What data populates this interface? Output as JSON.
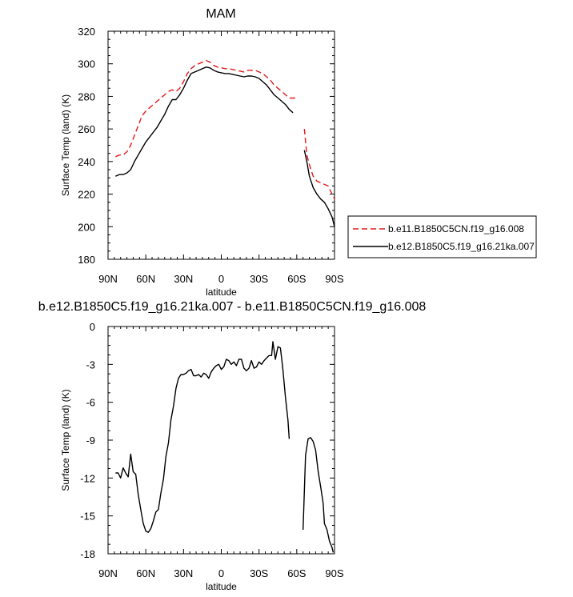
{
  "chart_data": [
    {
      "type": "line",
      "title": "MAM",
      "xlabel": "latitude",
      "ylabel": "Surface Temp (land) (K)",
      "xlim": [
        90,
        -90
      ],
      "ylim": [
        180,
        320
      ],
      "xticks": [
        90,
        60,
        30,
        0,
        -30,
        -60,
        -90
      ],
      "xticklabels": [
        "90N",
        "60N",
        "30N",
        "0",
        "30S",
        "60S",
        "90S"
      ],
      "yticks": [
        180,
        200,
        220,
        240,
        260,
        280,
        300,
        320
      ],
      "yticklabels": [
        "180",
        "200",
        "220",
        "240",
        "260",
        "280",
        "300",
        "320"
      ],
      "grid": false,
      "legend_position": "outside right",
      "series": [
        {
          "name": "b.e11.B1850C5CN.f19_g16.008",
          "color": "#e41a1c",
          "dash": "dashed",
          "segments": [
            [
              [
                84,
                243
              ],
              [
                81,
                244
              ],
              [
                78,
                244
              ],
              [
                75,
                246
              ],
              [
                72,
                250
              ],
              [
                69,
                256
              ],
              [
                66,
                262
              ],
              [
                63,
                268
              ],
              [
                60,
                271
              ],
              [
                57,
                273
              ],
              [
                54,
                275
              ],
              [
                51,
                277
              ],
              [
                48,
                279
              ],
              [
                45,
                281
              ],
              [
                42,
                283
              ],
              [
                39,
                284
              ],
              [
                36,
                283
              ],
              [
                33,
                285
              ],
              [
                30,
                289
              ],
              [
                27,
                294
              ],
              [
                24,
                297
              ],
              [
                21,
                299
              ],
              [
                18,
                300
              ],
              [
                15,
                301
              ],
              [
                12,
                302
              ],
              [
                9,
                301
              ],
              [
                6,
                299
              ],
              [
                3,
                298
              ],
              [
                0,
                297.5
              ],
              [
                -3,
                297
              ],
              [
                -6,
                297
              ],
              [
                -9,
                296.5
              ],
              [
                -12,
                296
              ],
              [
                -15,
                295.5
              ],
              [
                -18,
                295
              ],
              [
                -21,
                296
              ],
              [
                -24,
                296
              ],
              [
                -27,
                296
              ],
              [
                -30,
                295
              ],
              [
                -33,
                294
              ],
              [
                -36,
                292
              ],
              [
                -39,
                290
              ],
              [
                -42,
                287
              ],
              [
                -45,
                285
              ],
              [
                -48,
                283
              ],
              [
                -51,
                281
              ],
              [
                -54,
                279
              ],
              [
                -57,
                279
              ],
              [
                -60,
                279
              ]
            ],
            [
              [
                -66,
                260
              ],
              [
                -68,
                244
              ],
              [
                -70,
                238
              ],
              [
                -73,
                231
              ],
              [
                -76,
                228
              ],
              [
                -79,
                227
              ],
              [
                -82,
                226
              ],
              [
                -85,
                225
              ],
              [
                -88,
                220
              ],
              [
                -90,
                217
              ]
            ]
          ]
        },
        {
          "name": "b.e12.B1850C5.f19_g16.21ka.007",
          "color": "#000000",
          "dash": "solid",
          "segments": [
            [
              [
                84,
                231
              ],
              [
                81,
                232
              ],
              [
                78,
                232
              ],
              [
                75,
                233
              ],
              [
                72,
                235
              ],
              [
                69,
                240
              ],
              [
                66,
                244
              ],
              [
                63,
                248
              ],
              [
                60,
                252
              ],
              [
                57,
                255
              ],
              [
                54,
                258
              ],
              [
                51,
                261
              ],
              [
                48,
                265
              ],
              [
                45,
                269
              ],
              [
                42,
                274
              ],
              [
                39,
                278
              ],
              [
                36,
                278
              ],
              [
                33,
                281
              ],
              [
                30,
                285
              ],
              [
                27,
                290
              ],
              [
                24,
                294
              ],
              [
                21,
                295
              ],
              [
                18,
                296
              ],
              [
                15,
                297
              ],
              [
                12,
                298
              ],
              [
                9,
                297.5
              ],
              [
                6,
                296
              ],
              [
                3,
                295
              ],
              [
                0,
                294.5
              ],
              [
                -3,
                294
              ],
              [
                -6,
                294
              ],
              [
                -9,
                293.5
              ],
              [
                -12,
                293
              ],
              [
                -15,
                292.5
              ],
              [
                -18,
                292
              ],
              [
                -21,
                292.5
              ],
              [
                -24,
                292.5
              ],
              [
                -27,
                292
              ],
              [
                -30,
                291
              ],
              [
                -33,
                289
              ],
              [
                -36,
                287
              ],
              [
                -39,
                284
              ],
              [
                -42,
                281
              ],
              [
                -45,
                279
              ],
              [
                -48,
                277
              ],
              [
                -51,
                275
              ],
              [
                -54,
                272
              ],
              [
                -57,
                270
              ]
            ],
            [
              [
                -66,
                247
              ],
              [
                -68,
                240
              ],
              [
                -70,
                231
              ],
              [
                -73,
                224
              ],
              [
                -76,
                220
              ],
              [
                -79,
                217
              ],
              [
                -82,
                215
              ],
              [
                -85,
                211
              ],
              [
                -88,
                206
              ],
              [
                -90,
                200
              ]
            ]
          ]
        }
      ]
    },
    {
      "type": "line",
      "title": "b.e12.B1850C5.f19_g16.21ka.007 - b.e11.B1850C5CN.f19_g16.008",
      "xlabel": "latitude",
      "ylabel": "Surface Temp (land) (K)",
      "xlim": [
        90,
        -90
      ],
      "ylim": [
        -18,
        0
      ],
      "xticks": [
        90,
        60,
        30,
        0,
        -30,
        -60,
        -90
      ],
      "xticklabels": [
        "90N",
        "60N",
        "30N",
        "0",
        "30S",
        "60S",
        "90S"
      ],
      "yticks": [
        -18,
        -15,
        -12,
        -9,
        -6,
        -3,
        0
      ],
      "yticklabels": [
        "-18",
        "-15",
        "-12",
        "-9",
        "-6",
        "-3",
        "0"
      ],
      "grid": false,
      "series": [
        {
          "color": "#000000",
          "dash": "solid",
          "segments": [
            [
              [
                84,
                -11.6
              ],
              [
                82,
                -11.6
              ],
              [
                80,
                -12.0
              ],
              [
                78,
                -11.2
              ],
              [
                76,
                -11.6
              ],
              [
                74,
                -11.9
              ],
              [
                72,
                -10.1
              ],
              [
                70,
                -11.5
              ],
              [
                68,
                -11.7
              ],
              [
                66,
                -13.3
              ],
              [
                64,
                -14.5
              ],
              [
                62,
                -15.6
              ],
              [
                60,
                -16.2
              ],
              [
                58,
                -16.3
              ],
              [
                56,
                -16.0
              ],
              [
                54,
                -15.4
              ],
              [
                52,
                -14.7
              ],
              [
                50,
                -14.5
              ],
              [
                48,
                -13.2
              ],
              [
                46,
                -12.1
              ],
              [
                44,
                -10.3
              ],
              [
                42,
                -9.2
              ],
              [
                40,
                -7.4
              ],
              [
                38,
                -6.3
              ],
              [
                36,
                -4.9
              ],
              [
                34,
                -4.1
              ],
              [
                32,
                -3.8
              ],
              [
                30,
                -3.8
              ],
              [
                28,
                -3.7
              ],
              [
                26,
                -3.5
              ],
              [
                24,
                -3.4
              ],
              [
                22,
                -3.9
              ],
              [
                20,
                -3.9
              ],
              [
                18,
                -3.8
              ],
              [
                16,
                -4.0
              ],
              [
                14,
                -3.7
              ],
              [
                12,
                -3.8
              ],
              [
                10,
                -4.1
              ],
              [
                8,
                -3.6
              ],
              [
                6,
                -3.3
              ],
              [
                4,
                -3.1
              ],
              [
                2,
                -3.0
              ],
              [
                0,
                -3.4
              ],
              [
                -2,
                -3.2
              ],
              [
                -4,
                -2.6
              ],
              [
                -6,
                -2.7
              ],
              [
                -8,
                -3.0
              ],
              [
                -10,
                -2.8
              ],
              [
                -12,
                -3.1
              ],
              [
                -14,
                -2.6
              ],
              [
                -16,
                -2.6
              ],
              [
                -18,
                -3.3
              ],
              [
                -20,
                -3.5
              ],
              [
                -22,
                -3.3
              ],
              [
                -24,
                -2.7
              ],
              [
                -26,
                -3.3
              ],
              [
                -28,
                -3.2
              ],
              [
                -30,
                -2.8
              ],
              [
                -32,
                -3.0
              ],
              [
                -34,
                -2.7
              ],
              [
                -36,
                -2.5
              ],
              [
                -38,
                -2.3
              ],
              [
                -40,
                -2.3
              ],
              [
                -41,
                -1.2
              ],
              [
                -43,
                -2.6
              ],
              [
                -45,
                -1.6
              ],
              [
                -47,
                -1.7
              ],
              [
                -49,
                -3.4
              ],
              [
                -51,
                -5.6
              ],
              [
                -53,
                -7.4
              ],
              [
                -54,
                -8.9
              ]
            ],
            [
              [
                -65,
                -16.1
              ],
              [
                -67,
                -10.2
              ],
              [
                -69,
                -8.9
              ],
              [
                -71,
                -8.8
              ],
              [
                -73,
                -9.1
              ],
              [
                -75,
                -9.8
              ],
              [
                -77,
                -11.5
              ],
              [
                -79,
                -12.7
              ],
              [
                -81,
                -14.0
              ],
              [
                -82,
                -15.6
              ],
              [
                -84,
                -16.1
              ],
              [
                -86,
                -17.0
              ],
              [
                -88,
                -17.5
              ],
              [
                -89,
                -17.9
              ]
            ]
          ]
        }
      ]
    }
  ]
}
